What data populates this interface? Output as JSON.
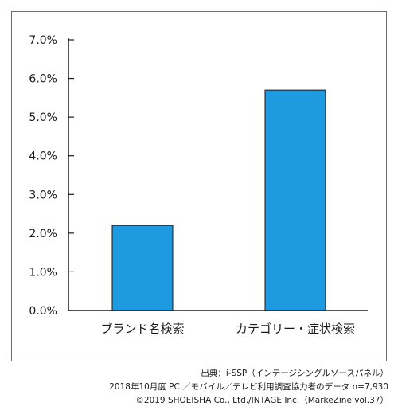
{
  "chart_data": {
    "type": "bar",
    "categories": [
      "ブランド名検索",
      "カテゴリー・症状検索"
    ],
    "values": [
      2.2,
      5.7
    ],
    "ylim": [
      0,
      7
    ],
    "yticks": [
      "0.0%",
      "1.0%",
      "2.0%",
      "3.0%",
      "4.0%",
      "5.0%",
      "6.0%",
      "7.0%"
    ],
    "grid": false,
    "legend": "none",
    "bar_color": "#1e9ae0",
    "title": "",
    "xlabel": "",
    "ylabel": ""
  },
  "caption": {
    "line1": "出典：i-SSP（インテージシングルソースパネル）",
    "line2": "2018年10月度 PC ／モバイル／テレビ利用調査協力者のデータ n=7,930",
    "line3": "©2019 SHOEISHA Co., Ltd./INTAGE Inc.（MarkeZine vol.37）"
  }
}
